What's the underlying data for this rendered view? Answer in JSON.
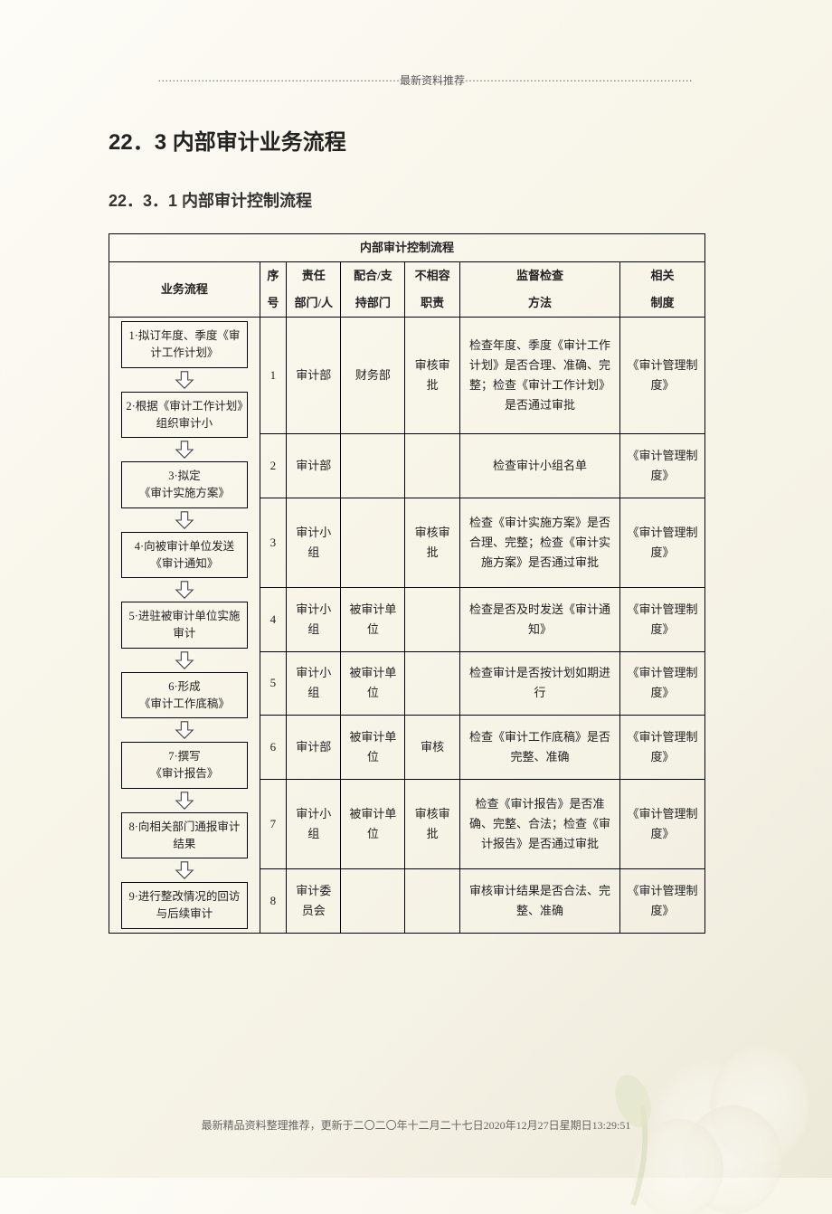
{
  "header": {
    "dotted_label": "最新资料推荐"
  },
  "titles": {
    "h1": "22．3 内部审计业务流程",
    "h2": "22．3．1 内部审计控制流程"
  },
  "table": {
    "title": "内部审计控制流程",
    "columns": {
      "flow": "业务流程",
      "seq": "序号",
      "resp": "责任部门/人",
      "sup": "配合/支持部门",
      "inc": "不相容职责",
      "method": "监督检查方法",
      "sys": "相关制度"
    },
    "seq_top": "序",
    "seq_bot": "号",
    "resp_top": "责任",
    "resp_bot": "部门/人",
    "sup_top": "配合/支",
    "sup_bot": "持部门",
    "inc_top": "不相容",
    "inc_bot": "职责",
    "method_top": "监督检查",
    "method_bot": "方法",
    "sys_top": "相关",
    "sys_bot": "制度",
    "rows": [
      {
        "seq": "1",
        "resp": "审计部",
        "sup": "财务部",
        "inc": "审核审批",
        "method": "检查年度、季度《审计工作计划》是否合理、准确、完整；检查《审计工作计划》是否通过审批",
        "sys": "《审计管理制度》"
      },
      {
        "seq": "2",
        "resp": "审计部",
        "sup": "",
        "inc": "",
        "method": "检查审计小组名单",
        "sys": "《审计管理制度》"
      },
      {
        "seq": "3",
        "resp": "审计小组",
        "sup": "",
        "inc": "审核审批",
        "method": "检查《审计实施方案》是否合理、完整；检查《审计实施方案》是否通过审批",
        "sys": "《审计管理制度》"
      },
      {
        "seq": "4",
        "resp": "审计小组",
        "sup": "被审计单位",
        "inc": "",
        "method": "检查是否及时发送《审计通知》",
        "sys": "《审计管理制度》"
      },
      {
        "seq": "5",
        "resp": "审计小组",
        "sup": "被审计单位",
        "inc": "",
        "method": "检查审计是否按计划如期进行",
        "sys": "《审计管理制度》"
      },
      {
        "seq": "6",
        "resp": "审计部",
        "sup": "被审计单位",
        "inc": "审核",
        "method": "检查《审计工作底稿》是否完整、准确",
        "sys": "《审计管理制度》"
      },
      {
        "seq": "7",
        "resp": "审计小组",
        "sup": "被审计单位",
        "inc": "审核审批",
        "method": "检查《审计报告》是否准确、完整、合法；检查《审计报告》是否通过审批",
        "sys": "《审计管理制度》"
      },
      {
        "seq": "8",
        "resp": "审计委员会",
        "sup": "",
        "inc": "",
        "method": "审核审计结果是否合法、完整、准确",
        "sys": "《审计管理制度》"
      }
    ],
    "steps": [
      "1·拟订年度、季度《审计工作计划》",
      "2·根据《审计工作计划》组织审计小",
      "3·拟定\n《审计实施方案》",
      "4·向被审计单位发送《审计通知》",
      "5·进驻被审计单位实施审计",
      "6·形成\n《审计工作底稿》",
      "7·撰写\n《审计报告》",
      "8·向相关部门通报审计结果",
      "9·进行整改情况的回访与后续审计"
    ]
  },
  "footer": {
    "text": "最新精品资料整理推荐，更新于二〇二〇年十二月二十七日2020年12月27日星期日13:29:51"
  },
  "colors": {
    "border": "#000000",
    "text": "#222222",
    "arrow_fill": "#ffffff",
    "arrow_stroke": "#444444"
  }
}
